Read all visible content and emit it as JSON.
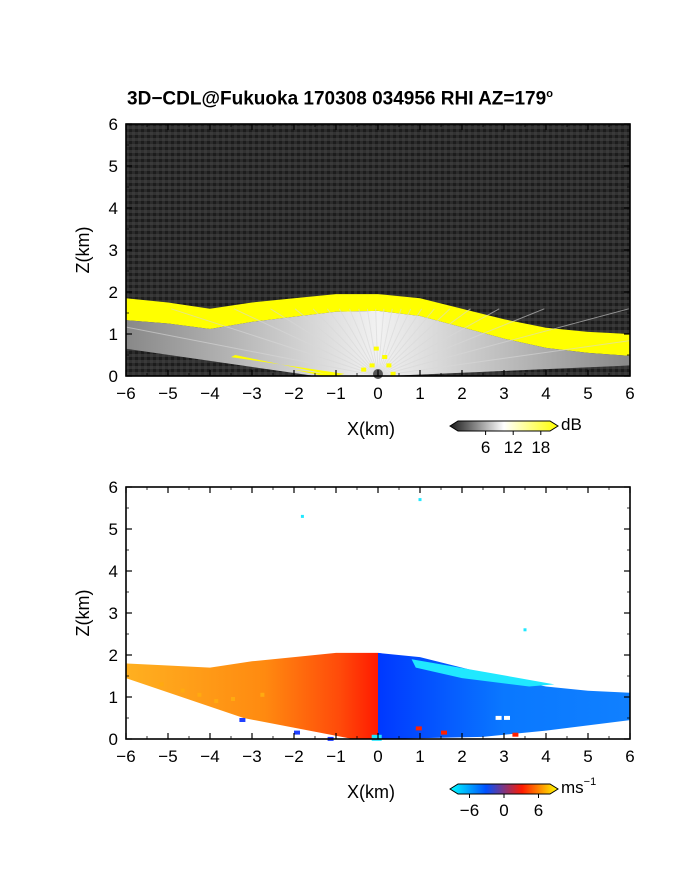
{
  "title": "3D−CDL@Fukuoka 170308 034956 RHI AZ=179",
  "title_degree_mark": "o",
  "chart_data": [
    {
      "type": "heatmap",
      "field": "signal intensity",
      "xlabel": "X(km)",
      "ylabel": "Z(km)",
      "xlim": [
        -6,
        6
      ],
      "ylim": [
        0,
        6
      ],
      "xticks": [
        -6,
        -5,
        -4,
        -3,
        -2,
        -1,
        0,
        1,
        2,
        3,
        4,
        5,
        6
      ],
      "yticks": [
        0,
        1,
        2,
        3,
        4,
        5,
        6
      ],
      "colorbar": {
        "unit": "dB",
        "ticks": [
          6,
          12,
          18
        ],
        "range": [
          0,
          20
        ],
        "colors": [
          "#1a1a1a",
          "#ffffff",
          "#ffff00"
        ]
      },
      "background": "#2a2a2a",
      "features": {
        "echo_top_profile_km": [
          {
            "x": -6.0,
            "z": 1.85
          },
          {
            "x": -5.0,
            "z": 1.75
          },
          {
            "x": -4.0,
            "z": 1.6
          },
          {
            "x": -3.0,
            "z": 1.75
          },
          {
            "x": -2.0,
            "z": 1.85
          },
          {
            "x": -1.0,
            "z": 1.95
          },
          {
            "x": 0.0,
            "z": 1.95
          },
          {
            "x": 1.0,
            "z": 1.85
          },
          {
            "x": 2.0,
            "z": 1.6
          },
          {
            "x": 3.0,
            "z": 1.35
          },
          {
            "x": 4.0,
            "z": 1.15
          },
          {
            "x": 5.0,
            "z": 1.05
          },
          {
            "x": 6.0,
            "z": 1.0
          }
        ],
        "high_intensity_band_color": "#ffff00",
        "low_level_beams_color": "#ffffff"
      }
    },
    {
      "type": "heatmap",
      "field": "Doppler velocity",
      "xlabel": "X(km)",
      "ylabel": "Z(km)",
      "xlim": [
        -6,
        6
      ],
      "ylim": [
        0,
        6
      ],
      "xticks": [
        -6,
        -5,
        -4,
        -3,
        -2,
        -1,
        0,
        1,
        2,
        3,
        4,
        5,
        6
      ],
      "yticks": [
        0,
        1,
        2,
        3,
        4,
        5,
        6
      ],
      "colorbar": {
        "unit": "ms",
        "unit_exponent": "−1",
        "ticks": [
          -6,
          0,
          6
        ],
        "tick_labels": [
          "−6",
          "0",
          "6"
        ],
        "range": [
          -8,
          8
        ],
        "colors": [
          "#00ffff",
          "#0050ff",
          "#ff1a00",
          "#ffff00"
        ]
      },
      "background": "#ffffff",
      "features": {
        "echo_top_profile_km": [
          {
            "x": -6.0,
            "z": 1.8
          },
          {
            "x": -5.0,
            "z": 1.75
          },
          {
            "x": -4.0,
            "z": 1.7
          },
          {
            "x": -3.0,
            "z": 1.85
          },
          {
            "x": -2.0,
            "z": 1.95
          },
          {
            "x": -1.0,
            "z": 2.05
          },
          {
            "x": 0.0,
            "z": 2.05
          },
          {
            "x": 1.0,
            "z": 1.95
          },
          {
            "x": 2.0,
            "z": 1.7
          },
          {
            "x": 3.0,
            "z": 1.45
          },
          {
            "x": 4.0,
            "z": 1.25
          },
          {
            "x": 5.0,
            "z": 1.15
          },
          {
            "x": 6.0,
            "z": 1.1
          }
        ],
        "negative_side": "x > 0 (blue, toward)",
        "positive_side": "x < 0 (orange/red, away)",
        "isolated_points_km": [
          {
            "x": -1.8,
            "z": 5.3
          },
          {
            "x": 1.0,
            "z": 5.7
          },
          {
            "x": 3.5,
            "z": 2.6
          }
        ]
      }
    }
  ]
}
